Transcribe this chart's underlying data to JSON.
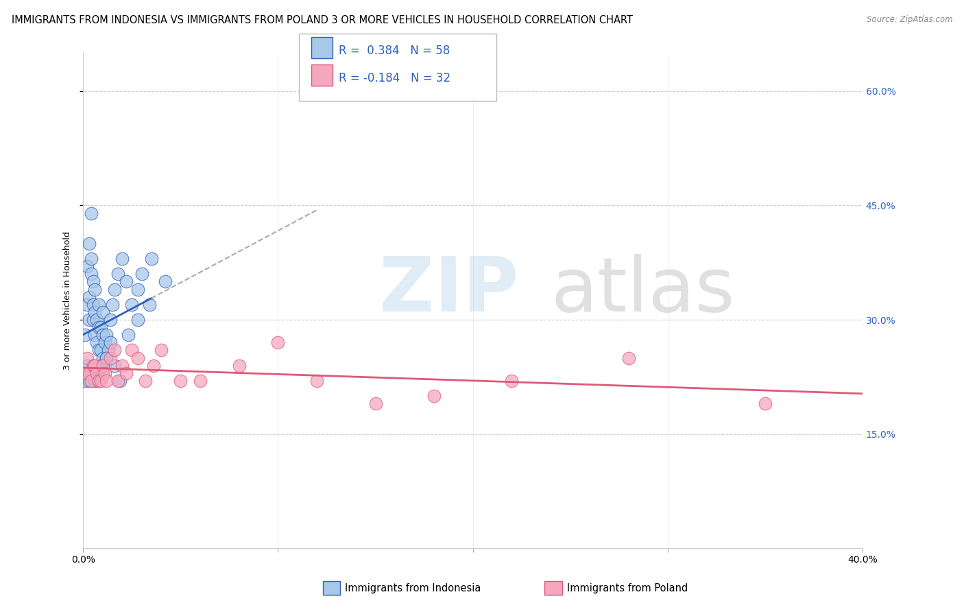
{
  "title": "IMMIGRANTS FROM INDONESIA VS IMMIGRANTS FROM POLAND 3 OR MORE VEHICLES IN HOUSEHOLD CORRELATION CHART",
  "source": "Source: ZipAtlas.com",
  "ylabel": "3 or more Vehicles in Household",
  "ytick_labels": [
    "15.0%",
    "30.0%",
    "45.0%",
    "60.0%"
  ],
  "ytick_values": [
    0.15,
    0.3,
    0.45,
    0.6
  ],
  "r_indonesia": 0.384,
  "n_indonesia": 58,
  "r_poland": -0.184,
  "n_poland": 32,
  "color_indonesia": "#a8c8e8",
  "color_poland": "#f4a8c0",
  "trend_color_indonesia": "#3060c0",
  "trend_color_poland": "#e05878",
  "indonesia_x": [
    0.001,
    0.002,
    0.002,
    0.003,
    0.003,
    0.003,
    0.004,
    0.004,
    0.004,
    0.005,
    0.005,
    0.005,
    0.006,
    0.006,
    0.006,
    0.007,
    0.007,
    0.008,
    0.008,
    0.008,
    0.009,
    0.009,
    0.01,
    0.01,
    0.01,
    0.011,
    0.011,
    0.012,
    0.012,
    0.013,
    0.014,
    0.015,
    0.016,
    0.018,
    0.02,
    0.022,
    0.025,
    0.028,
    0.03,
    0.035,
    0.001,
    0.002,
    0.003,
    0.004,
    0.005,
    0.006,
    0.007,
    0.008,
    0.009,
    0.01,
    0.012,
    0.014,
    0.016,
    0.019,
    0.023,
    0.028,
    0.034,
    0.042
  ],
  "indonesia_y": [
    0.28,
    0.32,
    0.37,
    0.3,
    0.33,
    0.4,
    0.36,
    0.38,
    0.44,
    0.3,
    0.32,
    0.35,
    0.28,
    0.31,
    0.34,
    0.27,
    0.3,
    0.26,
    0.29,
    0.32,
    0.26,
    0.29,
    0.25,
    0.28,
    0.31,
    0.24,
    0.27,
    0.25,
    0.28,
    0.26,
    0.3,
    0.32,
    0.34,
    0.36,
    0.38,
    0.35,
    0.32,
    0.34,
    0.36,
    0.38,
    0.22,
    0.24,
    0.22,
    0.23,
    0.24,
    0.22,
    0.23,
    0.22,
    0.24,
    0.23,
    0.25,
    0.27,
    0.24,
    0.22,
    0.28,
    0.3,
    0.32,
    0.35
  ],
  "poland_x": [
    0.001,
    0.002,
    0.003,
    0.004,
    0.005,
    0.006,
    0.007,
    0.008,
    0.009,
    0.01,
    0.011,
    0.012,
    0.014,
    0.016,
    0.018,
    0.02,
    0.022,
    0.025,
    0.028,
    0.032,
    0.036,
    0.04,
    0.05,
    0.06,
    0.08,
    0.1,
    0.12,
    0.15,
    0.18,
    0.22,
    0.28,
    0.35
  ],
  "poland_y": [
    0.23,
    0.25,
    0.23,
    0.22,
    0.24,
    0.24,
    0.23,
    0.22,
    0.22,
    0.24,
    0.23,
    0.22,
    0.25,
    0.26,
    0.22,
    0.24,
    0.23,
    0.26,
    0.25,
    0.22,
    0.24,
    0.26,
    0.22,
    0.22,
    0.24,
    0.27,
    0.22,
    0.19,
    0.2,
    0.22,
    0.25,
    0.19
  ],
  "xlim": [
    0.0,
    0.4
  ],
  "ylim": [
    0.0,
    0.65
  ],
  "background_color": "#ffffff",
  "grid_color": "#cccccc",
  "title_fontsize": 10.5,
  "axis_label_fontsize": 9,
  "tick_fontsize": 10
}
